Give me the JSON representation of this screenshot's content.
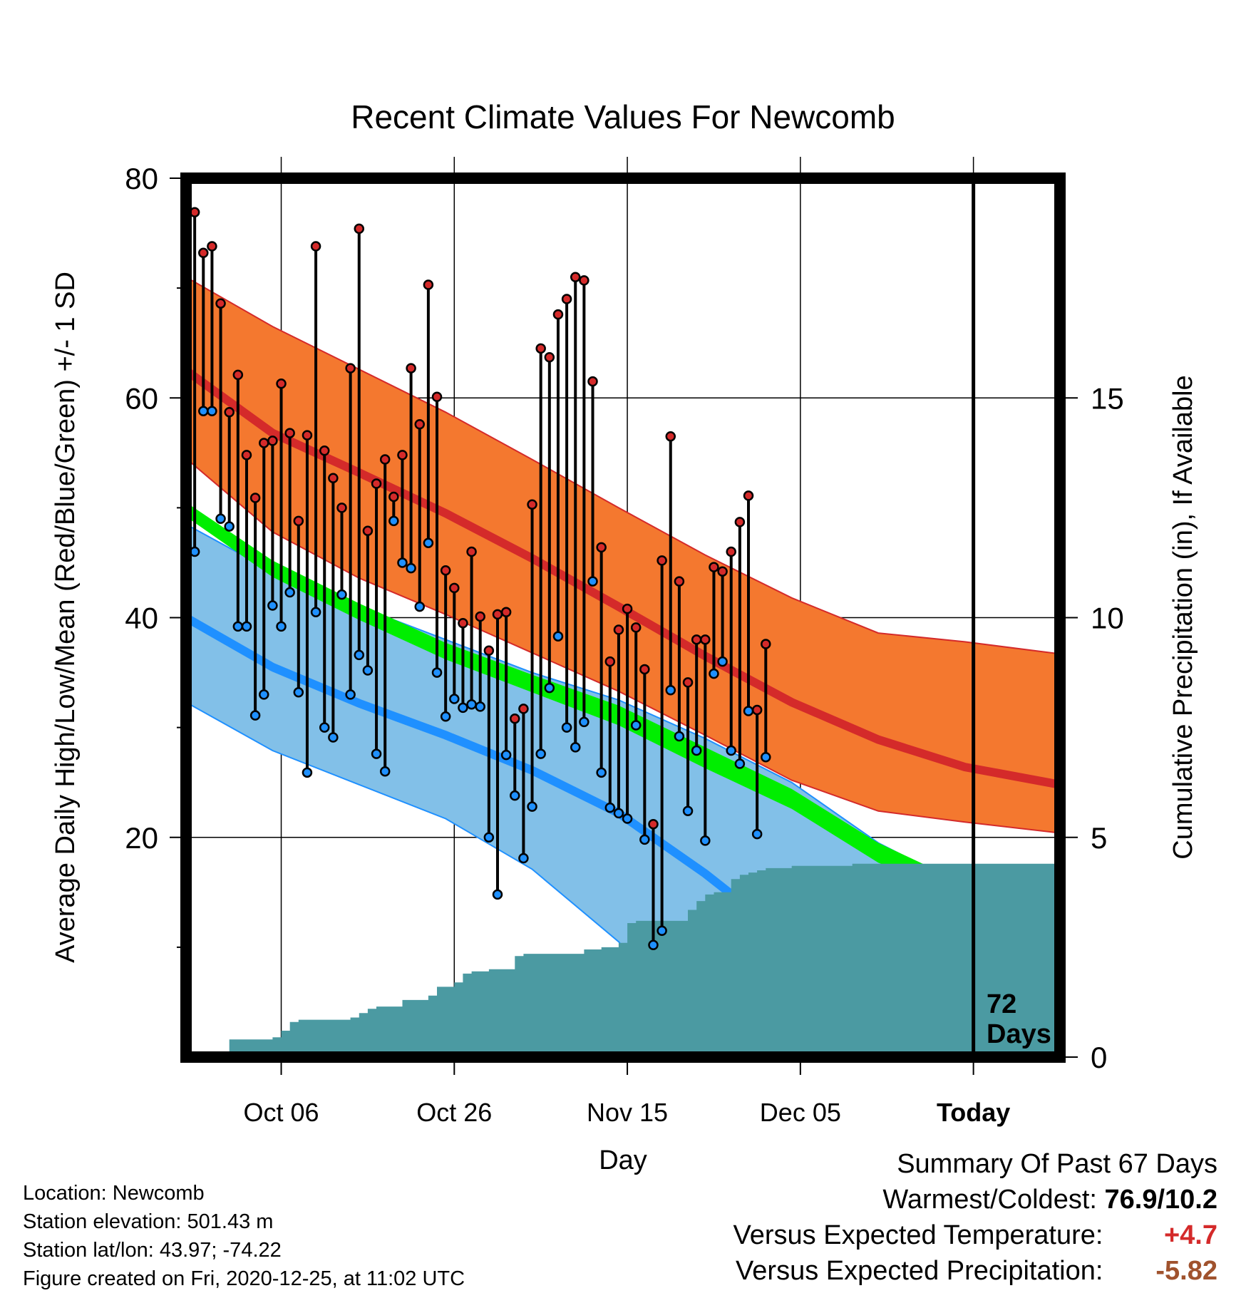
{
  "title": "Recent Climate Values For Newcomb",
  "colors": {
    "high_band": "#f4782f",
    "high_mean": "#d42a2a",
    "low_band": "#82c0e8",
    "low_mean": "#1f90ff",
    "overlap": "#931014",
    "mean_band": "#00ee00",
    "precip": "#4b9aa2",
    "warm_text": "#d42a2a",
    "precip_text": "#a0522d"
  },
  "chart_data": {
    "type": "line",
    "title": "Recent Climate Values For Newcomb",
    "xlabel": "Day",
    "ylabel": "Average Daily High/Low/Mean (Red/Blue/Green) +/- 1 SD",
    "y2label": "Cumulative Precipitation (in), If Available",
    "x_ticks": [
      "Oct 06",
      "Oct 26",
      "Nov 15",
      "Dec 05",
      "Today"
    ],
    "x_tick_days": [
      11,
      31,
      51,
      71,
      91
    ],
    "xlim": [
      0,
      101
    ],
    "ylim": [
      0,
      80
    ],
    "y_ticks": [
      20,
      40,
      60,
      80
    ],
    "y2lim": [
      0,
      20
    ],
    "y2_ticks": [
      0,
      5,
      10,
      15
    ],
    "grid": true,
    "today_label": [
      "72",
      "Days"
    ],
    "normals": {
      "days": [
        0,
        10,
        20,
        30,
        40,
        50,
        60,
        70,
        80,
        90,
        101
      ],
      "high_mean": [
        62.5,
        56.8,
        53.2,
        49.5,
        45.4,
        41.0,
        36.5,
        32.3,
        28.9,
        26.4,
        24.8
      ],
      "high_sd_upper": [
        71.0,
        66.5,
        62.6,
        58.7,
        54.4,
        50.0,
        45.7,
        41.8,
        38.6,
        37.8,
        36.7
      ],
      "high_sd_lower": [
        54.5,
        47.8,
        43.6,
        40.3,
        36.8,
        33.3,
        29.3,
        25.2,
        22.4,
        21.4,
        20.4
      ],
      "mean_upper": [
        50.5,
        45.2,
        41.3,
        37.7,
        34.8,
        32.0,
        28.2,
        24.4,
        19.5,
        15.8,
        13.8
      ],
      "mean_lower": [
        49.2,
        43.7,
        39.8,
        36.2,
        33.2,
        30.2,
        26.3,
        22.6,
        17.7,
        14.4,
        12.5
      ],
      "low_mean": [
        40.0,
        35.5,
        32.2,
        29.3,
        26.1,
        22.2,
        16.7,
        10.5,
        3.5,
        -1.5,
        -4.0
      ],
      "low_sd_upper": [
        48.5,
        44.2,
        41.0,
        38.0,
        35.0,
        32.5,
        29.0,
        25.0,
        19.5,
        15.5,
        13.5
      ],
      "low_sd_lower": [
        32.3,
        27.9,
        24.8,
        21.7,
        17.1,
        10.5,
        1.8,
        -7.7,
        -17.0,
        -23.0,
        -27.0
      ]
    },
    "daily": {
      "start_day": 1,
      "high": [
        76.9,
        73.2,
        73.8,
        68.6,
        58.7,
        62.1,
        54.8,
        50.9,
        55.9,
        56.1,
        61.3,
        56.8,
        48.8,
        56.6,
        73.8,
        55.2,
        52.7,
        50.0,
        62.7,
        75.4,
        47.9,
        52.2,
        54.4,
        51.0,
        54.8,
        62.7,
        57.6,
        70.3,
        60.1,
        44.3,
        42.7,
        39.5,
        46.0,
        40.1,
        37.0,
        40.3,
        40.5,
        30.8,
        31.7,
        50.3,
        64.5,
        63.7,
        67.6,
        69.0,
        71.0,
        70.7,
        61.5,
        46.4,
        36.0,
        38.9,
        40.8,
        39.1,
        35.3,
        21.2,
        45.2,
        56.5,
        43.3,
        34.1,
        38.0,
        38.0,
        44.6,
        44.2,
        46.0,
        48.7,
        51.1,
        31.6,
        37.6
      ],
      "low": [
        46.0,
        58.8,
        58.8,
        49.0,
        48.3,
        39.2,
        39.2,
        31.1,
        33.0,
        41.1,
        39.2,
        42.3,
        33.2,
        25.9,
        40.5,
        30.0,
        29.1,
        42.1,
        33.0,
        36.6,
        35.2,
        27.6,
        26.0,
        48.8,
        45.0,
        44.5,
        41.0,
        46.8,
        35.0,
        31.0,
        32.6,
        31.8,
        32.1,
        31.9,
        20.0,
        14.8,
        27.5,
        23.8,
        18.1,
        22.8,
        27.6,
        33.6,
        38.3,
        30.0,
        28.2,
        30.5,
        43.3,
        25.9,
        22.7,
        22.2,
        21.7,
        30.2,
        19.8,
        10.2,
        11.5,
        33.4,
        29.2,
        22.4,
        27.9,
        19.7,
        34.9,
        36.0,
        27.9,
        26.7,
        31.5,
        20.3,
        27.3
      ]
    },
    "precip": {
      "days": [
        0,
        4,
        5,
        9,
        10,
        11,
        12,
        13,
        18,
        19,
        20,
        21,
        22,
        24,
        25,
        28,
        29,
        30,
        31,
        32,
        33,
        34,
        35,
        37,
        38,
        39,
        40,
        41,
        42,
        45,
        46,
        47,
        48,
        49,
        50,
        51,
        52,
        53,
        54,
        55,
        56,
        57,
        58,
        59,
        60,
        61,
        62,
        63,
        64,
        65,
        66,
        67,
        68,
        70,
        74,
        77,
        78,
        80,
        92,
        101
      ],
      "values": [
        0.0,
        0.0,
        0.4,
        0.4,
        0.45,
        0.6,
        0.8,
        0.85,
        0.85,
        0.9,
        1.0,
        1.1,
        1.15,
        1.15,
        1.3,
        1.4,
        1.6,
        1.6,
        1.7,
        1.9,
        1.95,
        1.95,
        2.0,
        2.0,
        2.3,
        2.35,
        2.35,
        2.35,
        2.35,
        2.35,
        2.45,
        2.45,
        2.5,
        2.5,
        2.6,
        3.05,
        3.1,
        3.1,
        3.1,
        3.1,
        3.1,
        3.1,
        3.35,
        3.55,
        3.7,
        3.75,
        3.75,
        4.05,
        4.15,
        4.2,
        4.25,
        4.3,
        4.3,
        4.35,
        4.35,
        4.4,
        4.4,
        4.4,
        4.4,
        4.4
      ]
    }
  },
  "footer": {
    "location": "Location: Newcomb",
    "elevation": "Station elevation: 501.43 m",
    "latlon": "Station lat/lon: 43.97; -74.22",
    "created": "Figure created on Fri, 2020-12-25, at 11:02 UTC"
  },
  "summary": {
    "heading": "Summary Of Past 67 Days",
    "warmest_label": "Warmest/Coldest:",
    "warmest_value": "76.9/10.2",
    "temp_label": "Versus Expected Temperature:",
    "temp_value": "+4.7",
    "precip_label": "Versus Expected Precipitation:",
    "precip_value": "-5.82"
  }
}
